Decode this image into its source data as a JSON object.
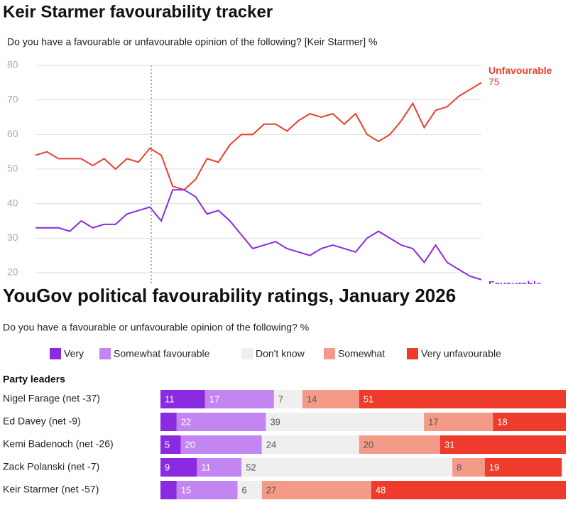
{
  "chart_data": [
    {
      "type": "line",
      "title": "Keir Starmer favourability tracker",
      "subtitle": "Do you have a favourable or unfavourable opinion of the following? [Keir Starmer] %",
      "categories": [
        null,
        null,
        null,
        null,
        null,
        null,
        null,
        null,
        null,
        null,
        null,
        null,
        null,
        null,
        null,
        null,
        null,
        null,
        null,
        null,
        null,
        null,
        null,
        null,
        null,
        null,
        null,
        null,
        null,
        null,
        null,
        null,
        null,
        null,
        null,
        null,
        null,
        null,
        null,
        null
      ],
      "series": [
        {
          "name": "Unfavourable",
          "color": "#e8402f",
          "values": [
            54,
            55,
            53,
            53,
            53,
            51,
            53,
            50,
            53,
            52,
            56,
            54,
            45,
            44,
            47,
            53,
            52,
            57,
            60,
            60,
            63,
            63,
            61,
            64,
            66,
            65,
            66,
            63,
            66,
            60,
            58,
            60,
            64,
            69,
            62,
            67,
            68,
            71,
            73,
            75
          ]
        },
        {
          "name": "Favourable",
          "color": "#8a2be2",
          "values": [
            33,
            33,
            33,
            32,
            35,
            33,
            34,
            34,
            37,
            38,
            39,
            35,
            44,
            44,
            42,
            37,
            38,
            35,
            31,
            27,
            28,
            29,
            27,
            26,
            25,
            27,
            28,
            27,
            26,
            30,
            32,
            30,
            28,
            27,
            23,
            28,
            23,
            21,
            19,
            18
          ]
        }
      ],
      "ylim": [
        20,
        80
      ],
      "yticks": [
        20,
        30,
        40,
        50,
        60,
        70,
        80
      ],
      "grid": true
    },
    {
      "type": "stacked-bar-horizontal",
      "title": "YouGov political favourability ratings, January 2026",
      "subtitle": "Do you have a favourable or unfavourable opinion of the following? %",
      "group_label": "Party leaders",
      "categories": [
        "Nigel Farage (net -37)",
        "Ed Davey (net -9)",
        "Kemi Badenoch (net -26)",
        "Zack Polanski (net -7)",
        "Keir Starmer (net -57)"
      ],
      "series": [
        {
          "name": "Very",
          "color": "#8a2be2",
          "values": [
            11,
            4,
            5,
            9,
            4
          ],
          "value_labels": [
            "11",
            null,
            "5",
            "9",
            null
          ]
        },
        {
          "name": "Somewhat favourable",
          "color": "#c285f2",
          "values": [
            17,
            22,
            20,
            11,
            15
          ]
        },
        {
          "name": "Don't know",
          "color": "#efefef",
          "values": [
            7,
            39,
            24,
            52,
            6
          ]
        },
        {
          "name": "Somewhat",
          "color": "#f49a89",
          "values": [
            14,
            17,
            20,
            8,
            27
          ]
        },
        {
          "name": "Very unfavourable",
          "color": "#ef3b2c",
          "values": [
            51,
            18,
            31,
            19,
            48
          ]
        }
      ],
      "xlim": [
        0,
        100
      ]
    }
  ]
}
